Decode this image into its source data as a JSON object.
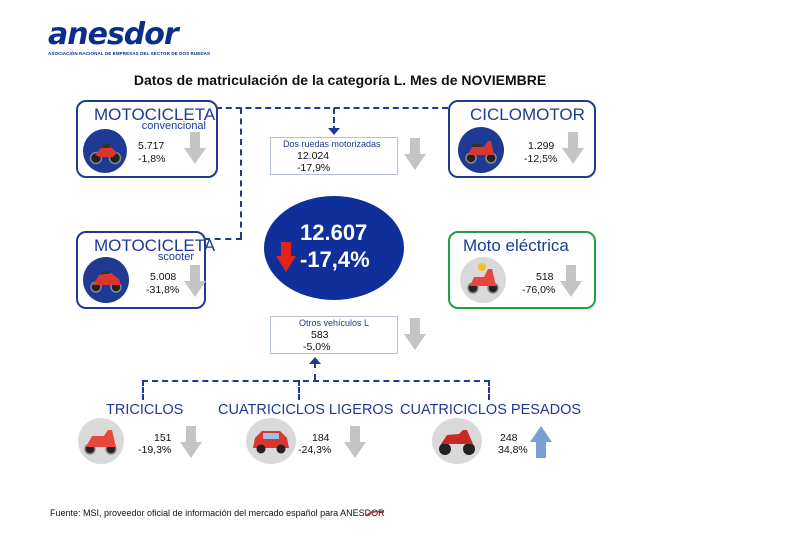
{
  "brand": {
    "name": "anesdor",
    "subtitle": "ASOCIACIÓN NACIONAL DE EMPRESAS DEL SECTOR DE DOS RUEDAS"
  },
  "title": "Datos de matriculación de la categoría L. Mes de NOVIEMBRE",
  "total": {
    "value": "12.607",
    "change": "-17,4%",
    "trend": "down"
  },
  "moto_convencional": {
    "title": "MOTOCICLETA",
    "subtitle": "convencional",
    "value": "5.717",
    "change": "-1,8%",
    "trend": "down",
    "icon": "motorcycle-icon"
  },
  "ciclomotor": {
    "title": "CICLOMOTOR",
    "value": "1.299",
    "change": "-12,5%",
    "trend": "down",
    "icon": "moped-icon"
  },
  "moto_scooter": {
    "title": "MOTOCICLETA",
    "subtitle": "scooter",
    "value": "5.008",
    "change": "-31,8%",
    "trend": "down",
    "icon": "scooter-icon"
  },
  "moto_electrica": {
    "title": "Moto eléctrica",
    "value": "518",
    "change": "-76,0%",
    "trend": "down",
    "icon": "electric-scooter-icon"
  },
  "dos_ruedas": {
    "title": "Dos ruedas motorizadas",
    "value": "12.024",
    "change": "-17,9%",
    "trend": "down"
  },
  "otros": {
    "title": "Otros vehículos L",
    "value": "583",
    "change": "-5,0%",
    "trend": "down"
  },
  "triciclos": {
    "title": "TRICICLOS",
    "value": "151",
    "change": "-19,3%",
    "trend": "down",
    "icon": "tricycle-icon"
  },
  "cuatriciclos_ligeros": {
    "title": "CUATRICICLOS LIGEROS",
    "value": "184",
    "change": "-24,3%",
    "trend": "down",
    "icon": "microcar-icon"
  },
  "cuatriciclos_pesados": {
    "title": "CUATRICICLOS PESADOS",
    "value": "248",
    "change": "34,8%",
    "trend": "up",
    "icon": "quad-icon"
  },
  "footer": {
    "text": "Fuente: MSI, proveedor oficial de información del mercado español para ANESDOR"
  },
  "colors": {
    "navy": "#1f3a93",
    "circle": "#0f2f9a",
    "green": "#22a045",
    "down_arrow": "#c4c4c4",
    "up_arrow": "#7b9fd4",
    "red_arrow": "#e1231b"
  }
}
